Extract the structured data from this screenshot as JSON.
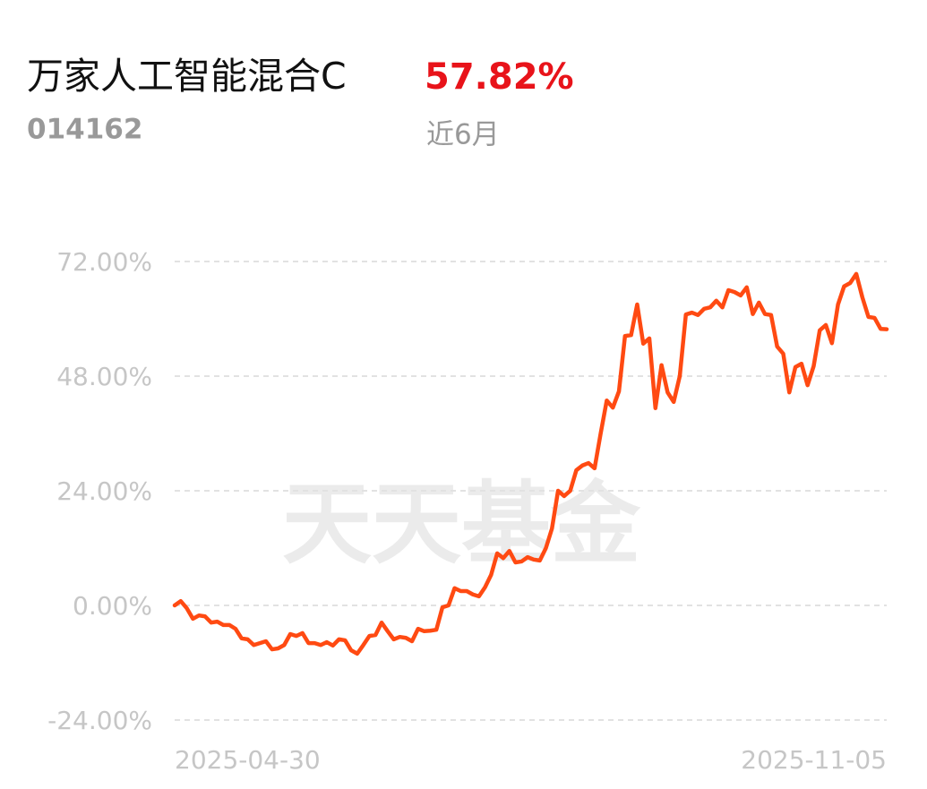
{
  "chart_data": {
    "type": "line",
    "title": "万家人工智能混合C",
    "subtitle": "014162",
    "annotations": [
      "57.82%",
      "近6月"
    ],
    "watermark": "天天基金",
    "categories": [
      "2025-04-30",
      null,
      null,
      null,
      null,
      null,
      null,
      null,
      null,
      null,
      null,
      null,
      null,
      null,
      null,
      null,
      null,
      null,
      null,
      null,
      null,
      null,
      null,
      null,
      null,
      null,
      null,
      null,
      null,
      null,
      null,
      null,
      null,
      null,
      null,
      null,
      null,
      null,
      null,
      null,
      null,
      null,
      null,
      null,
      null,
      null,
      null,
      null,
      null,
      null,
      null,
      null,
      null,
      null,
      null,
      null,
      null,
      null,
      null,
      null,
      null,
      null,
      null,
      null,
      null,
      null,
      null,
      null,
      null,
      null,
      null,
      null,
      null,
      null,
      null,
      null,
      null,
      null,
      null,
      null,
      null,
      null,
      null,
      null,
      null,
      null,
      null,
      null,
      null,
      null,
      null,
      null,
      null,
      null,
      null,
      null,
      null,
      null,
      null,
      null,
      null,
      null,
      null,
      null,
      null,
      null,
      null,
      null,
      null,
      null,
      null,
      null,
      null,
      null,
      null,
      null,
      null,
      "2025-11-05"
    ],
    "series": [
      {
        "color": "#ff4a12",
        "values": [
          0,
          0.9,
          -0.6,
          -2.8,
          -2.1,
          -2.3,
          -3.6,
          -3.4,
          -4.1,
          -4.1,
          -4.9,
          -6.9,
          -7.1,
          -8.3,
          -7.9,
          -7.5,
          -9.2,
          -9.0,
          -8.3,
          -6.0,
          -6.4,
          -5.8,
          -7.9,
          -7.9,
          -8.3,
          -7.7,
          -8.4,
          -7.1,
          -7.3,
          -9.4,
          -10.1,
          -8.3,
          -6.4,
          -6.2,
          -3.6,
          -5.4,
          -7.1,
          -6.6,
          -6.8,
          -7.5,
          -4.9,
          -5.4,
          -5.3,
          -5.1,
          -0.4,
          0,
          3.6,
          3.0,
          3.0,
          2.3,
          1.9,
          3.8,
          6.4,
          10.9,
          9.9,
          11.4,
          9.0,
          9.2,
          10.1,
          9.6,
          9.4,
          12.0,
          16.1,
          24.0,
          22.9,
          24.0,
          28.3,
          29.3,
          29.8,
          28.7,
          36.0,
          42.9,
          41.4,
          44.8,
          56.4,
          56.6,
          63.0,
          54.8,
          55.9,
          41.3,
          50.3,
          44.6,
          42.6,
          48.0,
          60.9,
          61.3,
          60.8,
          62.1,
          62.4,
          63.8,
          62.4,
          66.0,
          65.6,
          64.9,
          66.6,
          61.0,
          63.4,
          61.0,
          60.8,
          54.2,
          52.7,
          44.6,
          49.9,
          50.6,
          46.1,
          50.1,
          57.6,
          58.7,
          54.9,
          63.0,
          66.8,
          67.5,
          69.4,
          64.5,
          60.4,
          60.2,
          57.9,
          57.82
        ]
      }
    ],
    "ylim": [
      -24,
      72
    ],
    "yticks": [
      {
        "value": -24,
        "label": "-24.00%"
      },
      {
        "value": 0,
        "label": "0.00%"
      },
      {
        "value": 24,
        "label": "24.00%"
      },
      {
        "value": 48,
        "label": "48.00%"
      },
      {
        "value": 72,
        "label": "72.00%"
      }
    ],
    "grid": true
  }
}
